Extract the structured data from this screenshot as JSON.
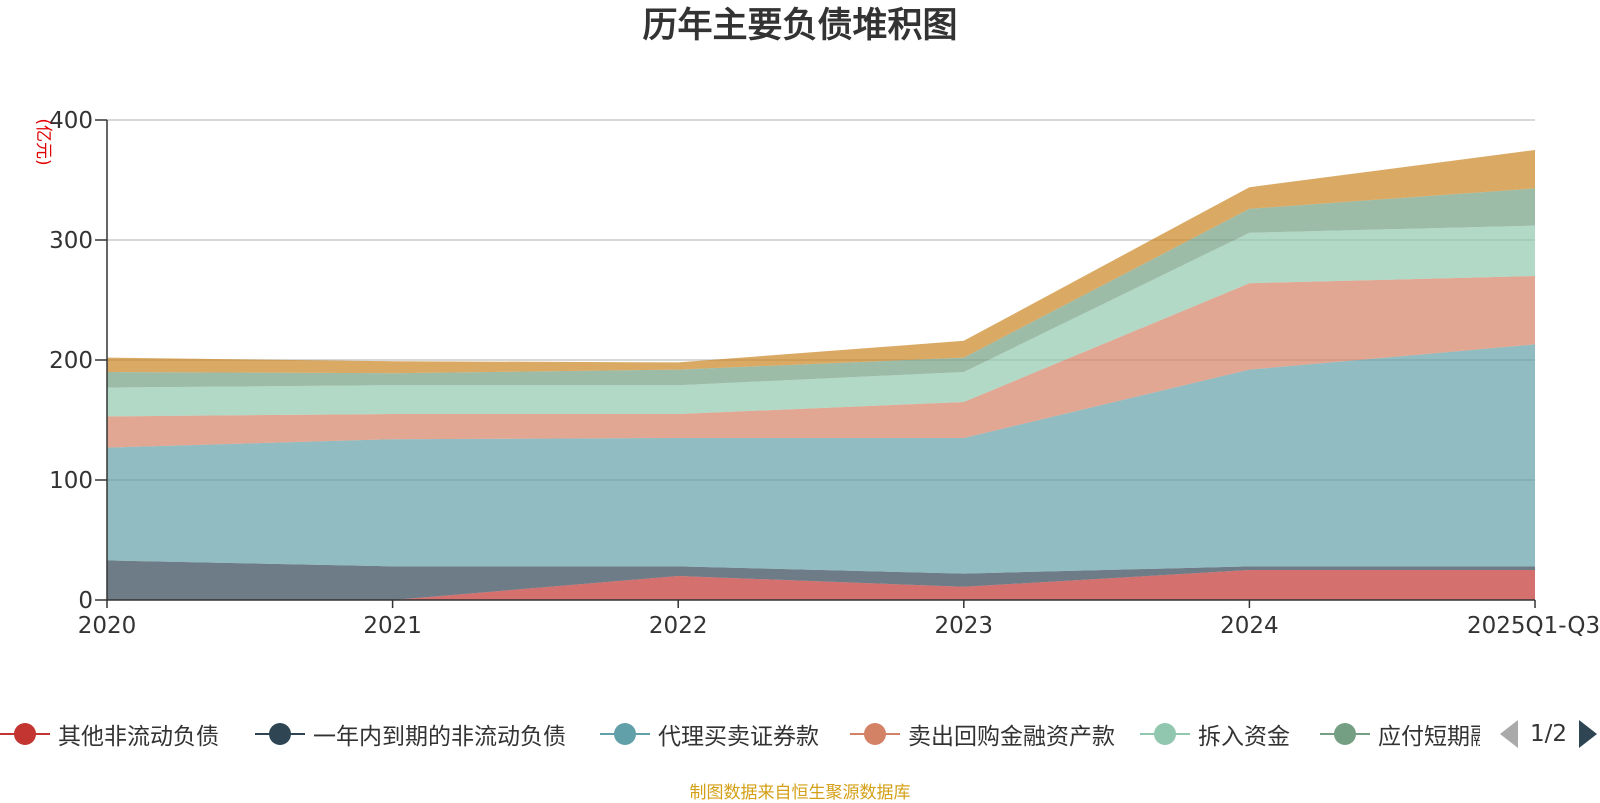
{
  "chart_data": {
    "type": "area",
    "stacked": true,
    "title": "历年主要负债堆积图",
    "ylabel": "(亿元)",
    "xlabel": "",
    "categories": [
      "2020",
      "2021",
      "2022",
      "2023",
      "2024",
      "2025Q1-Q3"
    ],
    "ylim": [
      0,
      400
    ],
    "yticks": [
      0,
      100,
      200,
      300,
      400
    ],
    "grid": true,
    "series": [
      {
        "name": "其他非流动负债",
        "color": "#c23531",
        "values": [
          0,
          0,
          20,
          11,
          25,
          25
        ]
      },
      {
        "name": "一年内到期的非流动负债",
        "color": "#2f4554",
        "values": [
          33,
          28,
          8,
          11,
          3,
          3
        ]
      },
      {
        "name": "代理买卖证券款",
        "color": "#61a0a8",
        "values": [
          94,
          106,
          107,
          113,
          164,
          185
        ]
      },
      {
        "name": "卖出回购金融资产款",
        "color": "#d48265",
        "values": [
          26,
          21,
          20,
          30,
          72,
          57
        ]
      },
      {
        "name": "拆入资金",
        "color": "#91c7ae",
        "values": [
          24,
          24,
          24,
          25,
          42,
          42
        ]
      },
      {
        "name": "应付短期融资款",
        "color": "#749f83",
        "values": [
          13,
          10,
          13,
          12,
          20,
          31
        ]
      },
      {
        "name": "",
        "color": "#ca8622",
        "values": [
          12,
          10,
          6,
          14,
          18,
          32
        ]
      }
    ]
  },
  "legend": {
    "visible_items": [
      "其他非流动负债",
      "一年内到期的非流动负债",
      "代理买卖证券款",
      "卖出回购金融资产款",
      "拆入资金",
      "应付短期融资款"
    ],
    "page_indicator": "1/2"
  },
  "source_note": "制图数据来自恒生聚源数据库"
}
